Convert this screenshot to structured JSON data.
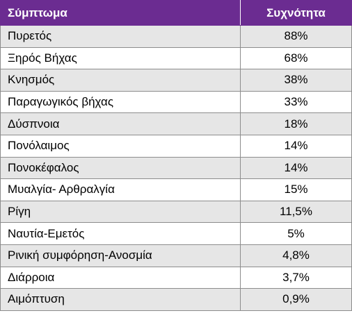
{
  "header": {
    "symptom": "Σύμπτωμα",
    "frequency": "Συχνότητα"
  },
  "colors": {
    "header_bg": "#6b2c91",
    "row_alt": "#e6e6e6"
  },
  "rows": [
    {
      "symptom": "Πυρετός",
      "frequency": "88%"
    },
    {
      "symptom": "Ξηρός Βήχας",
      "frequency": "68%"
    },
    {
      "symptom": "Κνησμός",
      "frequency": "38%"
    },
    {
      "symptom": "Παραγωγικός βήχας",
      "frequency": "33%"
    },
    {
      "symptom": "Δύσπνοια",
      "frequency": "18%"
    },
    {
      "symptom": "Πονόλαιμος",
      "frequency": "14%"
    },
    {
      "symptom": "Πονοκέφαλος",
      "frequency": "14%"
    },
    {
      "symptom": "Μυαλγία- Αρθραλγία",
      "frequency": "15%"
    },
    {
      "symptom": "Ρίγη",
      "frequency": "11,5%"
    },
    {
      "symptom": "Ναυτία-Εμετός",
      "frequency": "5%"
    },
    {
      "symptom": "Ρινική συμφόρηση-Ανοσμία",
      "frequency": "4,8%"
    },
    {
      "symptom": "Διάρροια",
      "frequency": "3,7%"
    },
    {
      "symptom": "Αιμόπτυση",
      "frequency": "0,9%"
    }
  ]
}
